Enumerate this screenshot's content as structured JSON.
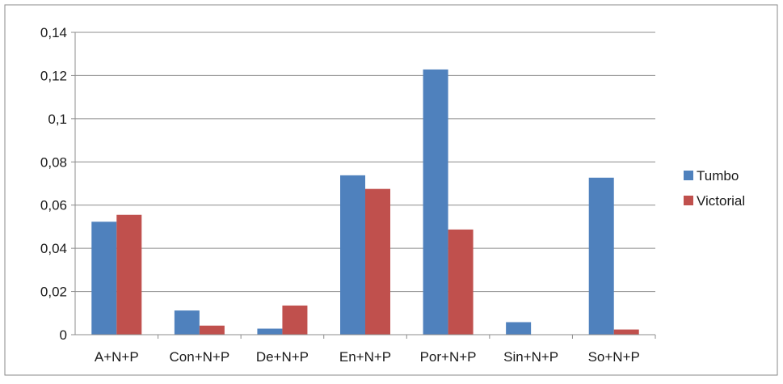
{
  "chart_data": {
    "type": "bar",
    "categories": [
      "A+N+P",
      "Con+N+P",
      "De+N+P",
      "En+N+P",
      "Por+N+P",
      "Sin+N+P",
      "So+N+P"
    ],
    "series": [
      {
        "name": "Tumbo",
        "color": "#4F81BD",
        "values": [
          0.0523,
          0.0112,
          0.0028,
          0.0738,
          0.1228,
          0.0058,
          0.0727
        ]
      },
      {
        "name": "Victorial",
        "color": "#C0504D",
        "values": [
          0.0555,
          0.0042,
          0.0135,
          0.0675,
          0.0487,
          0.0,
          0.0024
        ]
      }
    ],
    "y_ticks": [
      "0",
      "0,02",
      "0,04",
      "0,06",
      "0,08",
      "0,1",
      "0,12",
      "0,14"
    ],
    "ylim": [
      0,
      0.14
    ],
    "grid": true,
    "legend_position": "right",
    "title": "",
    "xlabel": "",
    "ylabel": ""
  }
}
